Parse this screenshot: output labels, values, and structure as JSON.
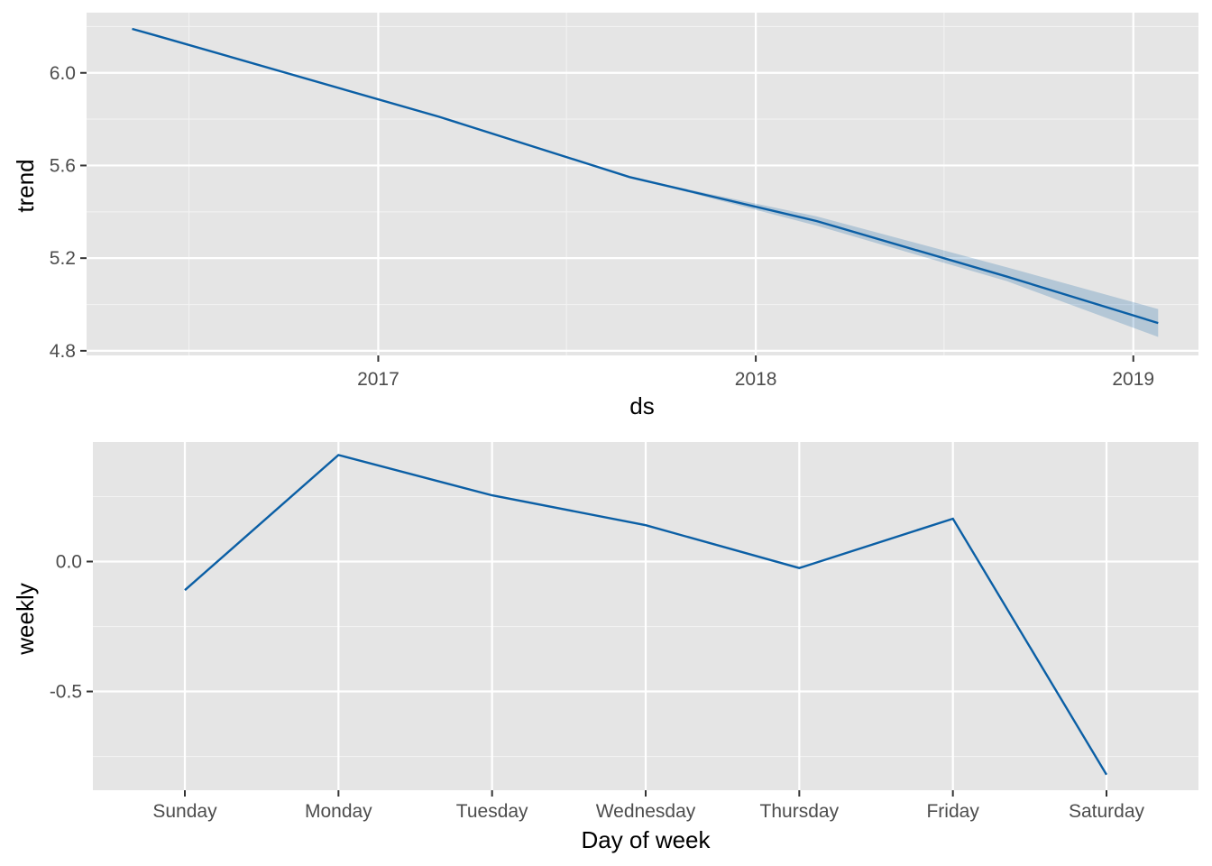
{
  "chart_data": [
    {
      "type": "line",
      "xlabel": "ds",
      "ylabel": "trend",
      "x_ticks": [
        "2017",
        "2018",
        "2019"
      ],
      "y_ticks": [
        "4.8",
        "5.2",
        "5.6",
        "6.0"
      ],
      "ylim": [
        4.78,
        6.26
      ],
      "xlim": [
        "2016-03-25",
        "2019-03-05"
      ],
      "line_color": "#0b5fa5",
      "band_color": "#0b5fa5",
      "series": [
        {
          "x": [
            "2016-05-08",
            "2016-06-01",
            "2017-03-01",
            "2017-09-01",
            "2018-03-01",
            "2018-09-01",
            "2019-01-25"
          ],
          "values": [
            6.19,
            6.16,
            5.81,
            5.55,
            5.36,
            5.12,
            4.92
          ],
          "lower": [
            6.19,
            6.16,
            5.81,
            5.55,
            5.34,
            5.1,
            4.86
          ],
          "upper": [
            6.19,
            6.16,
            5.81,
            5.55,
            5.38,
            5.16,
            4.98
          ]
        }
      ]
    },
    {
      "type": "line",
      "xlabel": "Day of week",
      "ylabel": "weekly",
      "categories": [
        "Sunday",
        "Monday",
        "Tuesday",
        "Wednesday",
        "Thursday",
        "Friday",
        "Saturday"
      ],
      "y_ticks": [
        "-0.5",
        "0.0"
      ],
      "ylim": [
        -0.88,
        0.46
      ],
      "line_color": "#0b5fa5",
      "series": [
        {
          "values": [
            -0.11,
            0.41,
            0.255,
            0.14,
            -0.025,
            0.165,
            -0.82
          ]
        }
      ]
    }
  ]
}
